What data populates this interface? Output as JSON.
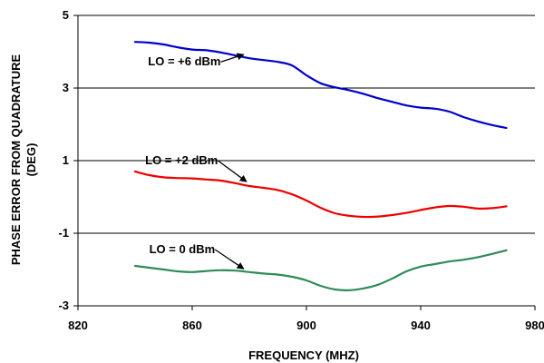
{
  "chart_data": {
    "type": "line",
    "title": "",
    "xlabel": "FREQUENCY (MHZ)",
    "ylabel_lines": [
      "PHASE ERROR FROM QUADRATURE",
      "(DEG)"
    ],
    "xlim": [
      820,
      980
    ],
    "ylim": [
      -3,
      5
    ],
    "xticks": [
      820,
      860,
      900,
      940,
      980
    ],
    "yticks": [
      5,
      3,
      1,
      -1,
      -3
    ],
    "grid": "horizontal",
    "legend": "none",
    "series": [
      {
        "name": "LO = +6 dBm",
        "color": "#0000cc",
        "x": [
          840,
          845,
          850,
          855,
          860,
          865,
          870,
          875,
          880,
          885,
          890,
          895,
          900,
          905,
          910,
          915,
          920,
          925,
          930,
          935,
          940,
          945,
          950,
          955,
          960,
          965,
          970
        ],
        "y": [
          4.27,
          4.25,
          4.2,
          4.12,
          4.06,
          4.04,
          3.98,
          3.9,
          3.82,
          3.77,
          3.72,
          3.62,
          3.35,
          3.13,
          3.02,
          2.94,
          2.84,
          2.72,
          2.62,
          2.52,
          2.46,
          2.43,
          2.35,
          2.2,
          2.08,
          1.98,
          1.9
        ]
      },
      {
        "name": "LO = +2 dBm",
        "color": "#ee0000",
        "x": [
          840,
          845,
          850,
          855,
          860,
          865,
          870,
          875,
          880,
          885,
          890,
          895,
          900,
          905,
          910,
          915,
          920,
          925,
          930,
          935,
          940,
          945,
          950,
          955,
          960,
          965,
          970
        ],
        "y": [
          0.7,
          0.6,
          0.54,
          0.52,
          0.51,
          0.48,
          0.45,
          0.38,
          0.3,
          0.25,
          0.19,
          0.07,
          -0.1,
          -0.3,
          -0.45,
          -0.52,
          -0.55,
          -0.54,
          -0.5,
          -0.44,
          -0.36,
          -0.29,
          -0.25,
          -0.27,
          -0.32,
          -0.31,
          -0.26
        ]
      },
      {
        "name": "LO = 0 dBm",
        "color": "#2e8b57",
        "x": [
          840,
          845,
          850,
          855,
          860,
          865,
          870,
          875,
          880,
          885,
          890,
          895,
          900,
          905,
          910,
          915,
          920,
          925,
          930,
          935,
          940,
          945,
          950,
          955,
          960,
          965,
          970
        ],
        "y": [
          -1.9,
          -1.95,
          -2.0,
          -2.05,
          -2.07,
          -2.04,
          -2.02,
          -2.03,
          -2.07,
          -2.11,
          -2.14,
          -2.2,
          -2.3,
          -2.45,
          -2.55,
          -2.57,
          -2.52,
          -2.42,
          -2.25,
          -2.05,
          -1.92,
          -1.85,
          -1.78,
          -1.73,
          -1.66,
          -1.57,
          -1.47
        ]
      }
    ],
    "annotations": [
      {
        "text": "LO = +6 dBm",
        "series": 0,
        "from": [
          870,
          3.72
        ],
        "to": [
          878,
          3.92
        ]
      },
      {
        "text": "LO = +2 dBm",
        "series": 1,
        "from": [
          869,
          1.0
        ],
        "to": [
          879,
          0.42
        ]
      },
      {
        "text": "LO = 0 dBm",
        "series": 2,
        "from": [
          868,
          -1.45
        ],
        "to": [
          878,
          -1.98
        ]
      }
    ]
  }
}
